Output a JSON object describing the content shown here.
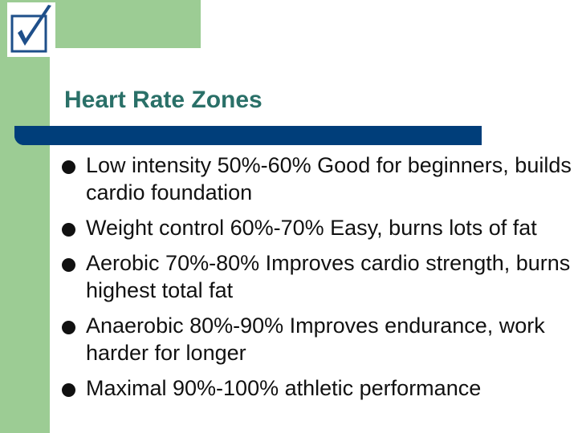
{
  "slide": {
    "title": "Heart Rate Zones",
    "bullets": [
      "Low intensity 50%-60% Good for beginners, builds cardio foundation",
      "Weight control 60%-70% Easy, burns lots of fat",
      "Aerobic 70%-80% Improves cardio strength, burns highest total fat",
      "Anaerobic 80%-90% Improves endurance, work harder for longer",
      "Maximal 90%-100% athletic performance"
    ]
  },
  "theme": {
    "band_color": "#9ccc94",
    "title_color": "#2a7068",
    "bar_color": "#003e7a",
    "text_color": "#111111"
  },
  "icons": {
    "logo": "checkmark-icon"
  }
}
